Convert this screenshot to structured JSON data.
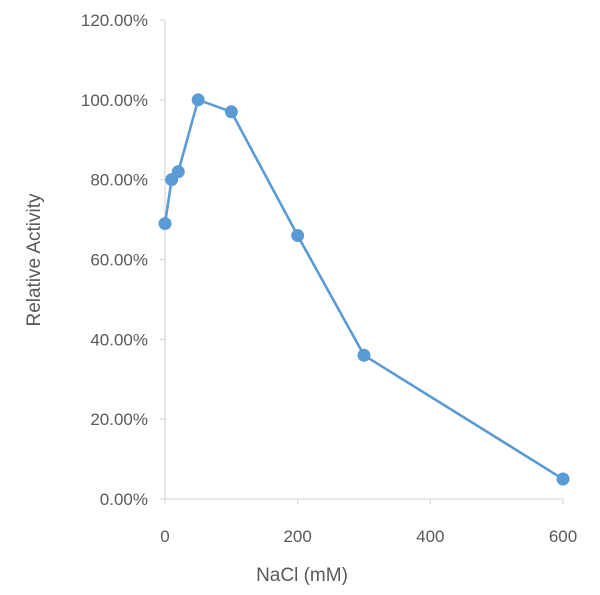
{
  "chart_data": {
    "type": "line",
    "title": "",
    "xlabel": "NaCl (mM)",
    "ylabel": "Relative Activity",
    "x": [
      0,
      10,
      20,
      50,
      100,
      200,
      300,
      600
    ],
    "series": [
      {
        "values": [
          0.69,
          0.8,
          0.82,
          1.0,
          0.97,
          0.66,
          0.36,
          0.05
        ]
      }
    ],
    "xlim": [
      0,
      600
    ],
    "ylim": [
      0,
      1.2
    ],
    "x_ticks": [
      0,
      200,
      400,
      600
    ],
    "x_tick_labels": [
      "0",
      "200",
      "400",
      "600"
    ],
    "y_ticks": [
      0,
      0.2,
      0.4,
      0.6,
      0.8,
      1.0,
      1.2
    ],
    "y_tick_labels": [
      "0.00%",
      "20.00%",
      "40.00%",
      "60.00%",
      "80.00%",
      "100.00%",
      "120.00%"
    ],
    "grid": false,
    "legend": "none",
    "colors": {
      "series": "#5b9bd5",
      "axis": "#d9d9d9",
      "text": "#595959"
    }
  }
}
